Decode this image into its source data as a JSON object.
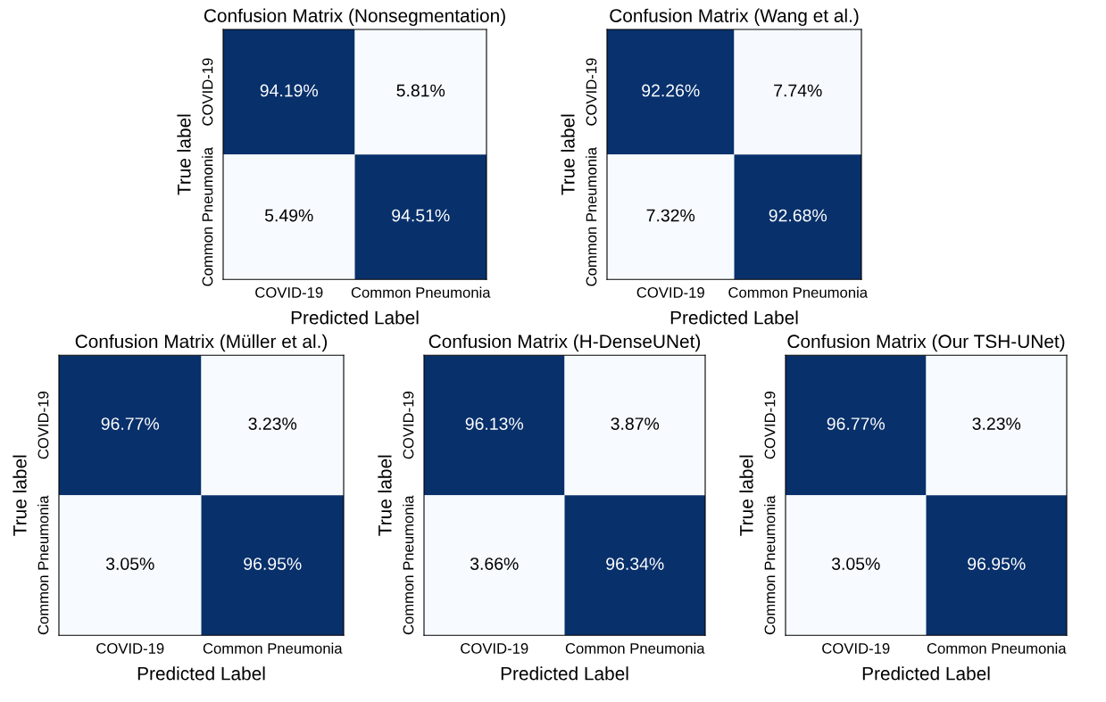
{
  "chart_data": [
    {
      "type": "heatmap",
      "title": "Confusion Matrix (Nonsegmentation)",
      "xlabel": "Predicted Label",
      "ylabel": "True label",
      "categories": [
        "COVID-19",
        "Common Pneumonia"
      ],
      "y_categories": [
        "COVID-19",
        "Common Pneumonia"
      ],
      "cells": [
        [
          94.19,
          5.81
        ],
        [
          5.49,
          94.51
        ]
      ],
      "cell_labels": [
        [
          "94.19%",
          "5.81%"
        ],
        [
          "5.49%",
          "94.51%"
        ]
      ]
    },
    {
      "type": "heatmap",
      "title": "Confusion Matrix (Wang et al.)",
      "xlabel": "Predicted Label",
      "ylabel": "True label",
      "categories": [
        "COVID-19",
        "Common Pneumonia"
      ],
      "y_categories": [
        "COVID-19",
        "Common Pneumonia"
      ],
      "cells": [
        [
          92.26,
          7.74
        ],
        [
          7.32,
          92.68
        ]
      ],
      "cell_labels": [
        [
          "92.26%",
          "7.74%"
        ],
        [
          "7.32%",
          "92.68%"
        ]
      ]
    },
    {
      "type": "heatmap",
      "title": "Confusion Matrix (Müller et al.)",
      "xlabel": "Predicted Label",
      "ylabel": "True label",
      "categories": [
        "COVID-19",
        "Common Pneumonia"
      ],
      "y_categories": [
        "COVID-19",
        "Common Pneumonia"
      ],
      "cells": [
        [
          96.77,
          3.23
        ],
        [
          3.05,
          96.95
        ]
      ],
      "cell_labels": [
        [
          "96.77%",
          "3.23%"
        ],
        [
          "3.05%",
          "96.95%"
        ]
      ]
    },
    {
      "type": "heatmap",
      "title": "Confusion Matrix (H-DenseUNet)",
      "xlabel": "Predicted Label",
      "ylabel": "True label",
      "categories": [
        "COVID-19",
        "Common Pneumonia"
      ],
      "y_categories": [
        "COVID-19",
        "Common Pneumonia"
      ],
      "cells": [
        [
          96.13,
          3.87
        ],
        [
          3.66,
          96.34
        ]
      ],
      "cell_labels": [
        [
          "96.13%",
          "3.87%"
        ],
        [
          "3.66%",
          "96.34%"
        ]
      ]
    },
    {
      "type": "heatmap",
      "title": "Confusion Matrix (Our TSH-UNet)",
      "xlabel": "Predicted Label",
      "ylabel": "True label",
      "categories": [
        "COVID-19",
        "Common Pneumonia"
      ],
      "y_categories": [
        "COVID-19",
        "Common Pneumonia"
      ],
      "cells": [
        [
          96.77,
          3.23
        ],
        [
          3.05,
          96.95
        ]
      ],
      "cell_labels": [
        [
          "96.77%",
          "3.23%"
        ],
        [
          "3.05%",
          "96.95%"
        ]
      ]
    }
  ]
}
